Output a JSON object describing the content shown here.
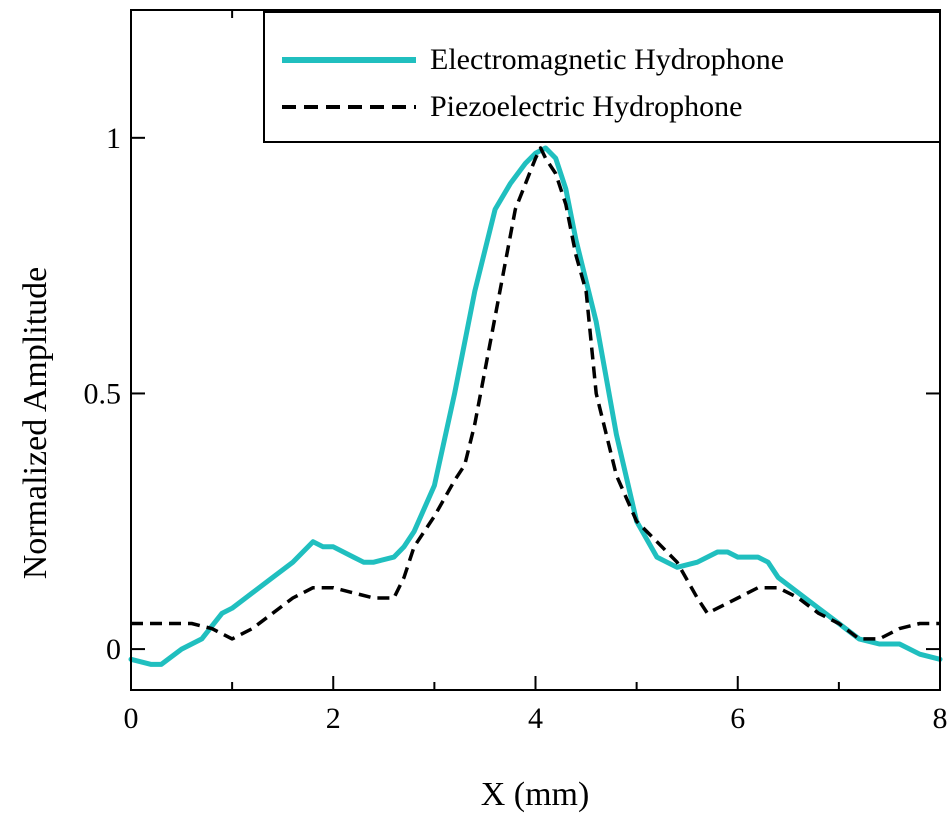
{
  "chart_data": {
    "type": "line",
    "xlabel": "X (mm)",
    "ylabel": "Normalized Amplitude",
    "xlim": [
      0,
      8
    ],
    "ylim": [
      -0.08,
      1.25
    ],
    "xticks": [
      0,
      2,
      4,
      6,
      8
    ],
    "xtick_labels": [
      "0",
      "2",
      "4",
      "6",
      "8"
    ],
    "xminor_ticks": [
      1,
      3,
      5,
      7
    ],
    "yticks": [
      0,
      0.5,
      1
    ],
    "ytick_labels": [
      "0",
      "0.5",
      "1"
    ],
    "grid": false,
    "legend_position": "top-right",
    "series": [
      {
        "name": "Electromagnetic Hydrophone",
        "color": "#20bfbf",
        "style": "solid",
        "x": [
          0,
          0.2,
          0.3,
          0.5,
          0.7,
          0.9,
          1.0,
          1.2,
          1.4,
          1.6,
          1.8,
          1.9,
          2.0,
          2.2,
          2.3,
          2.4,
          2.6,
          2.7,
          2.8,
          3.0,
          3.2,
          3.4,
          3.6,
          3.75,
          3.9,
          4.0,
          4.1,
          4.2,
          4.3,
          4.4,
          4.6,
          4.8,
          5.0,
          5.2,
          5.4,
          5.6,
          5.8,
          5.9,
          6.0,
          6.2,
          6.3,
          6.4,
          6.6,
          6.8,
          7.0,
          7.2,
          7.4,
          7.6,
          7.8,
          8.0
        ],
        "y": [
          -0.02,
          -0.03,
          -0.03,
          0.0,
          0.02,
          0.07,
          0.08,
          0.11,
          0.14,
          0.17,
          0.21,
          0.2,
          0.2,
          0.18,
          0.17,
          0.17,
          0.18,
          0.2,
          0.23,
          0.32,
          0.5,
          0.7,
          0.86,
          0.91,
          0.95,
          0.97,
          0.98,
          0.96,
          0.9,
          0.8,
          0.64,
          0.42,
          0.25,
          0.18,
          0.16,
          0.17,
          0.19,
          0.19,
          0.18,
          0.18,
          0.17,
          0.14,
          0.11,
          0.08,
          0.05,
          0.02,
          0.01,
          0.01,
          -0.01,
          -0.02
        ]
      },
      {
        "name": "Piezoelectric Hydrophone",
        "color": "#000000",
        "style": "dashed",
        "x": [
          0,
          0.2,
          0.4,
          0.6,
          0.8,
          1.0,
          1.2,
          1.4,
          1.6,
          1.8,
          2.0,
          2.2,
          2.4,
          2.6,
          2.7,
          2.8,
          3.0,
          3.2,
          3.3,
          3.4,
          3.6,
          3.8,
          4.0,
          4.05,
          4.1,
          4.2,
          4.3,
          4.4,
          4.5,
          4.6,
          4.8,
          5.0,
          5.2,
          5.4,
          5.6,
          5.7,
          5.8,
          6.0,
          6.2,
          6.4,
          6.6,
          6.8,
          7.0,
          7.2,
          7.4,
          7.6,
          7.8,
          8.0
        ],
        "y": [
          0.05,
          0.05,
          0.05,
          0.05,
          0.04,
          0.02,
          0.04,
          0.07,
          0.1,
          0.12,
          0.12,
          0.11,
          0.1,
          0.1,
          0.14,
          0.2,
          0.26,
          0.33,
          0.36,
          0.44,
          0.65,
          0.86,
          0.96,
          0.98,
          0.96,
          0.93,
          0.87,
          0.77,
          0.7,
          0.5,
          0.34,
          0.25,
          0.21,
          0.17,
          0.1,
          0.07,
          0.08,
          0.1,
          0.12,
          0.12,
          0.1,
          0.07,
          0.05,
          0.02,
          0.02,
          0.04,
          0.05,
          0.05
        ]
      }
    ]
  }
}
